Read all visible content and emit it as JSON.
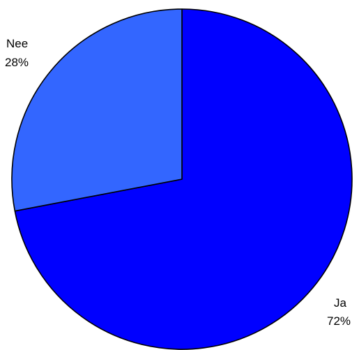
{
  "chart_data": {
    "type": "pie",
    "slices": [
      {
        "label": "Ja",
        "percent_label": "72%",
        "value": 72,
        "color": "#0000ff"
      },
      {
        "label": "Nee",
        "percent_label": "28%",
        "value": 28,
        "color": "#3366ff"
      }
    ],
    "start_angle_deg": 0,
    "direction": "clockwise",
    "legend": "none",
    "labels_outside": true
  }
}
